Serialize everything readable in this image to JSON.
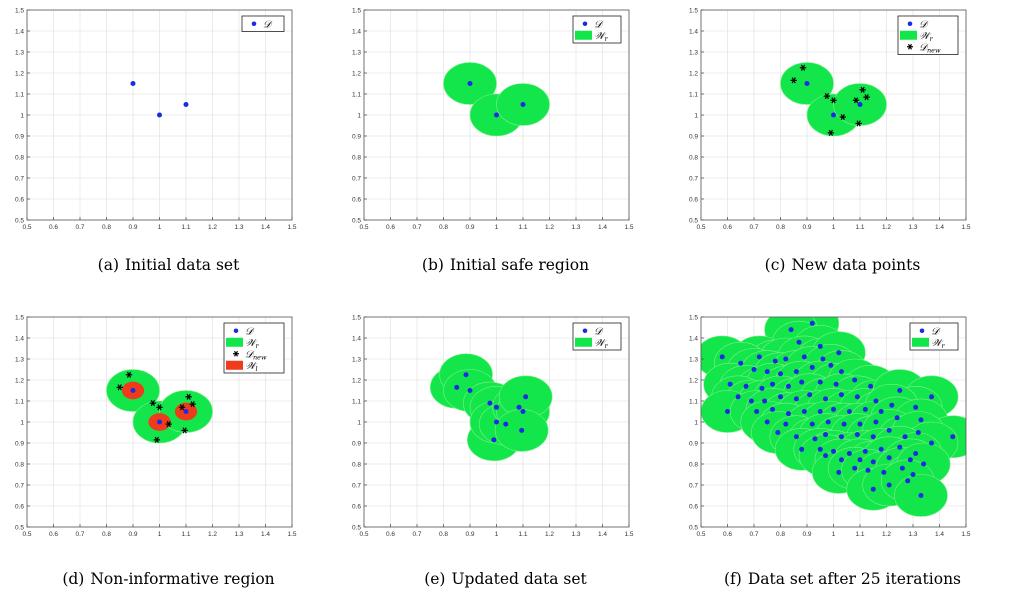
{
  "colors": {
    "point": "#1a2be6",
    "safe": "#13e64a",
    "safe_edge": "#7cf08a",
    "noninformative": "#f03a1c",
    "new_point": "#000000",
    "grid": "#e6e6e6",
    "axis": "#555555"
  },
  "chart_data": [
    {
      "panel_tag": "(a)",
      "caption": "Initial data set",
      "type": "scatter",
      "xlim": [
        0.5,
        1.5
      ],
      "ylim": [
        0.5,
        1.5
      ],
      "x_ticks": [
        "0.5",
        "0.6",
        "0.7",
        "0.8",
        "0.9",
        "1",
        "1.1",
        "1.2",
        "1.3",
        "1.4",
        "1.5"
      ],
      "y_ticks": [
        "0.5",
        "0.6",
        "0.7",
        "0.8",
        "0.9",
        "1",
        "1.1",
        "1.2",
        "1.3",
        "1.4",
        "1.5"
      ],
      "grid": true,
      "legend_position": "top-right",
      "legend": [
        {
          "label": "𝒟",
          "kind": "dot"
        }
      ],
      "points": [
        [
          0.9,
          1.15
        ],
        [
          1.0,
          1.0
        ],
        [
          1.1,
          1.05
        ]
      ],
      "safe_radius": 0,
      "new_points": [],
      "ni_points": [],
      "ni_radius": 0
    },
    {
      "panel_tag": "(b)",
      "caption": "Initial safe region",
      "type": "scatter",
      "xlim": [
        0.5,
        1.5
      ],
      "ylim": [
        0.5,
        1.5
      ],
      "x_ticks": [
        "0.5",
        "0.6",
        "0.7",
        "0.8",
        "0.9",
        "1",
        "1.1",
        "1.2",
        "1.3",
        "1.4",
        "1.5"
      ],
      "y_ticks": [
        "0.5",
        "0.6",
        "0.7",
        "0.8",
        "0.9",
        "1",
        "1.1",
        "1.2",
        "1.3",
        "1.4",
        "1.5"
      ],
      "grid": true,
      "legend_position": "top-right",
      "legend": [
        {
          "label": "𝒟",
          "kind": "dot"
        },
        {
          "label": "𝒲",
          "sub": "r",
          "kind": "green"
        }
      ],
      "points": [
        [
          0.9,
          1.15
        ],
        [
          1.0,
          1.0
        ],
        [
          1.1,
          1.05
        ]
      ],
      "safe_radius": 0.1,
      "new_points": [],
      "ni_points": [],
      "ni_radius": 0
    },
    {
      "panel_tag": "(c)",
      "caption": "New data points",
      "type": "scatter",
      "xlim": [
        0.5,
        1.5
      ],
      "ylim": [
        0.5,
        1.5
      ],
      "x_ticks": [
        "0.5",
        "0.6",
        "0.7",
        "0.8",
        "0.9",
        "1",
        "1.1",
        "1.2",
        "1.3",
        "1.4",
        "1.5"
      ],
      "y_ticks": [
        "0.5",
        "0.6",
        "0.7",
        "0.8",
        "0.9",
        "1",
        "1.1",
        "1.2",
        "1.3",
        "1.4",
        "1.5"
      ],
      "grid": true,
      "legend_position": "top-right",
      "legend": [
        {
          "label": "𝒟",
          "kind": "dot"
        },
        {
          "label": "𝒲",
          "sub": "r",
          "kind": "green"
        },
        {
          "label": "𝒟",
          "sub": "new",
          "kind": "star"
        }
      ],
      "points": [
        [
          0.9,
          1.15
        ],
        [
          1.0,
          1.0
        ],
        [
          1.1,
          1.05
        ]
      ],
      "safe_radius": 0.1,
      "new_points": [
        [
          0.85,
          1.165
        ],
        [
          0.885,
          1.225
        ],
        [
          0.975,
          1.09
        ],
        [
          1.0,
          1.07
        ],
        [
          0.99,
          0.915
        ],
        [
          1.035,
          0.99
        ],
        [
          1.085,
          1.07
        ],
        [
          1.11,
          1.12
        ],
        [
          1.125,
          1.085
        ],
        [
          1.095,
          0.96
        ]
      ],
      "ni_points": [],
      "ni_radius": 0
    },
    {
      "panel_tag": "(d)",
      "caption": "Non-informative region",
      "type": "scatter",
      "xlim": [
        0.5,
        1.5
      ],
      "ylim": [
        0.5,
        1.5
      ],
      "x_ticks": [
        "0.5",
        "0.6",
        "0.7",
        "0.8",
        "0.9",
        "1",
        "1.1",
        "1.2",
        "1.3",
        "1.4",
        "1.5"
      ],
      "y_ticks": [
        "0.5",
        "0.6",
        "0.7",
        "0.8",
        "0.9",
        "1",
        "1.1",
        "1.2",
        "1.3",
        "1.4",
        "1.5"
      ],
      "grid": true,
      "legend_position": "top-right",
      "legend": [
        {
          "label": "𝒟",
          "kind": "dot"
        },
        {
          "label": "𝒲",
          "sub": "r",
          "kind": "green"
        },
        {
          "label": "𝒟",
          "sub": "new",
          "kind": "star"
        },
        {
          "label": "𝒲",
          "sub": "l",
          "kind": "red"
        }
      ],
      "points": [
        [
          0.9,
          1.15
        ],
        [
          1.0,
          1.0
        ],
        [
          1.1,
          1.05
        ]
      ],
      "safe_radius": 0.1,
      "new_points": [
        [
          0.85,
          1.165
        ],
        [
          0.885,
          1.225
        ],
        [
          0.975,
          1.09
        ],
        [
          1.0,
          1.07
        ],
        [
          0.99,
          0.915
        ],
        [
          1.035,
          0.99
        ],
        [
          1.085,
          1.07
        ],
        [
          1.11,
          1.12
        ],
        [
          1.125,
          1.085
        ],
        [
          1.095,
          0.96
        ]
      ],
      "ni_points": [
        [
          0.9,
          1.15
        ],
        [
          1.0,
          1.0
        ],
        [
          1.1,
          1.05
        ]
      ],
      "ni_radius": 0.042
    },
    {
      "panel_tag": "(e)",
      "caption": "Updated data set",
      "type": "scatter",
      "xlim": [
        0.5,
        1.5
      ],
      "ylim": [
        0.5,
        1.5
      ],
      "x_ticks": [
        "0.5",
        "0.6",
        "0.7",
        "0.8",
        "0.9",
        "1",
        "1.1",
        "1.2",
        "1.3",
        "1.4",
        "1.5"
      ],
      "y_ticks": [
        "0.5",
        "0.6",
        "0.7",
        "0.8",
        "0.9",
        "1",
        "1.1",
        "1.2",
        "1.3",
        "1.4",
        "1.5"
      ],
      "grid": true,
      "legend_position": "top-right",
      "legend": [
        {
          "label": "𝒟",
          "kind": "dot"
        },
        {
          "label": "𝒲",
          "sub": "r",
          "kind": "green"
        }
      ],
      "points": [
        [
          0.85,
          1.165
        ],
        [
          0.885,
          1.225
        ],
        [
          0.9,
          1.15
        ],
        [
          0.975,
          1.09
        ],
        [
          1.0,
          1.07
        ],
        [
          0.99,
          0.915
        ],
        [
          1.0,
          1.0
        ],
        [
          1.035,
          0.99
        ],
        [
          1.085,
          1.07
        ],
        [
          1.1,
          1.05
        ],
        [
          1.11,
          1.12
        ],
        [
          1.095,
          0.96
        ]
      ],
      "safe_radius": 0.1,
      "new_points": [],
      "ni_points": [],
      "ni_radius": 0
    },
    {
      "panel_tag": "(f)",
      "caption": "Data set after 25 iterations",
      "type": "scatter",
      "xlim": [
        0.5,
        1.5
      ],
      "ylim": [
        0.5,
        1.5
      ],
      "x_ticks": [
        "0.5",
        "0.6",
        "0.7",
        "0.8",
        "0.9",
        "1",
        "1.1",
        "1.2",
        "1.3",
        "1.4",
        "1.5"
      ],
      "y_ticks": [
        "0.5",
        "0.6",
        "0.7",
        "0.8",
        "0.9",
        "1",
        "1.1",
        "1.2",
        "1.3",
        "1.4",
        "1.5"
      ],
      "grid": true,
      "legend_position": "top-right",
      "legend": [
        {
          "label": "𝒟",
          "kind": "dot"
        },
        {
          "label": "𝒲",
          "sub": "r",
          "kind": "green"
        }
      ],
      "points": [
        [
          0.92,
          1.47
        ],
        [
          0.84,
          1.44
        ],
        [
          0.87,
          1.38
        ],
        [
          0.95,
          1.36
        ],
        [
          0.72,
          1.31
        ],
        [
          0.78,
          1.29
        ],
        [
          0.82,
          1.3
        ],
        [
          0.89,
          1.31
        ],
        [
          0.96,
          1.3
        ],
        [
          1.02,
          1.33
        ],
        [
          0.58,
          1.31
        ],
        [
          0.65,
          1.28
        ],
        [
          0.7,
          1.25
        ],
        [
          0.75,
          1.24
        ],
        [
          0.8,
          1.23
        ],
        [
          0.86,
          1.24
        ],
        [
          0.92,
          1.26
        ],
        [
          0.99,
          1.27
        ],
        [
          1.03,
          1.24
        ],
        [
          0.61,
          1.18
        ],
        [
          0.67,
          1.17
        ],
        [
          0.73,
          1.16
        ],
        [
          0.77,
          1.18
        ],
        [
          0.83,
          1.17
        ],
        [
          0.88,
          1.19
        ],
        [
          0.95,
          1.19
        ],
        [
          1.01,
          1.18
        ],
        [
          1.08,
          1.2
        ],
        [
          1.14,
          1.17
        ],
        [
          0.64,
          1.12
        ],
        [
          0.69,
          1.1
        ],
        [
          0.74,
          1.1
        ],
        [
          0.8,
          1.12
        ],
        [
          0.86,
          1.11
        ],
        [
          0.91,
          1.13
        ],
        [
          0.97,
          1.11
        ],
        [
          1.03,
          1.13
        ],
        [
          1.09,
          1.12
        ],
        [
          1.16,
          1.1
        ],
        [
          1.25,
          1.15
        ],
        [
          1.37,
          1.12
        ],
        [
          1.31,
          1.07
        ],
        [
          0.6,
          1.05
        ],
        [
          0.71,
          1.05
        ],
        [
          0.77,
          1.06
        ],
        [
          0.83,
          1.04
        ],
        [
          0.89,
          1.05
        ],
        [
          0.95,
          1.05
        ],
        [
          1.0,
          1.06
        ],
        [
          1.06,
          1.05
        ],
        [
          1.12,
          1.06
        ],
        [
          1.18,
          1.05
        ],
        [
          1.22,
          1.08
        ],
        [
          0.75,
          1.0
        ],
        [
          0.82,
          0.99
        ],
        [
          0.92,
          0.99
        ],
        [
          0.98,
          1.0
        ],
        [
          1.04,
          0.99
        ],
        [
          1.1,
          0.99
        ],
        [
          1.16,
          1.0
        ],
        [
          1.24,
          1.02
        ],
        [
          1.33,
          1.01
        ],
        [
          1.45,
          0.93
        ],
        [
          0.79,
          0.95
        ],
        [
          0.86,
          0.93
        ],
        [
          0.93,
          0.92
        ],
        [
          0.97,
          0.94
        ],
        [
          1.03,
          0.93
        ],
        [
          1.09,
          0.94
        ],
        [
          1.15,
          0.93
        ],
        [
          1.21,
          0.96
        ],
        [
          1.27,
          0.93
        ],
        [
          1.32,
          0.95
        ],
        [
          1.37,
          0.9
        ],
        [
          0.88,
          0.87
        ],
        [
          0.95,
          0.87
        ],
        [
          1.0,
          0.86
        ],
        [
          1.06,
          0.85
        ],
        [
          1.12,
          0.86
        ],
        [
          1.18,
          0.87
        ],
        [
          1.25,
          0.88
        ],
        [
          1.31,
          0.85
        ],
        [
          0.97,
          0.84
        ],
        [
          1.03,
          0.82
        ],
        [
          1.1,
          0.82
        ],
        [
          1.15,
          0.81
        ],
        [
          1.21,
          0.83
        ],
        [
          1.29,
          0.82
        ],
        [
          1.02,
          0.76
        ],
        [
          1.08,
          0.78
        ],
        [
          1.13,
          0.77
        ],
        [
          1.19,
          0.76
        ],
        [
          1.26,
          0.78
        ],
        [
          1.3,
          0.75
        ],
        [
          1.34,
          0.8
        ],
        [
          1.15,
          0.68
        ],
        [
          1.21,
          0.7
        ],
        [
          1.28,
          0.72
        ],
        [
          1.33,
          0.65
        ]
      ],
      "safe_radius": 0.1,
      "new_points": [],
      "ni_points": [],
      "ni_radius": 0
    }
  ]
}
